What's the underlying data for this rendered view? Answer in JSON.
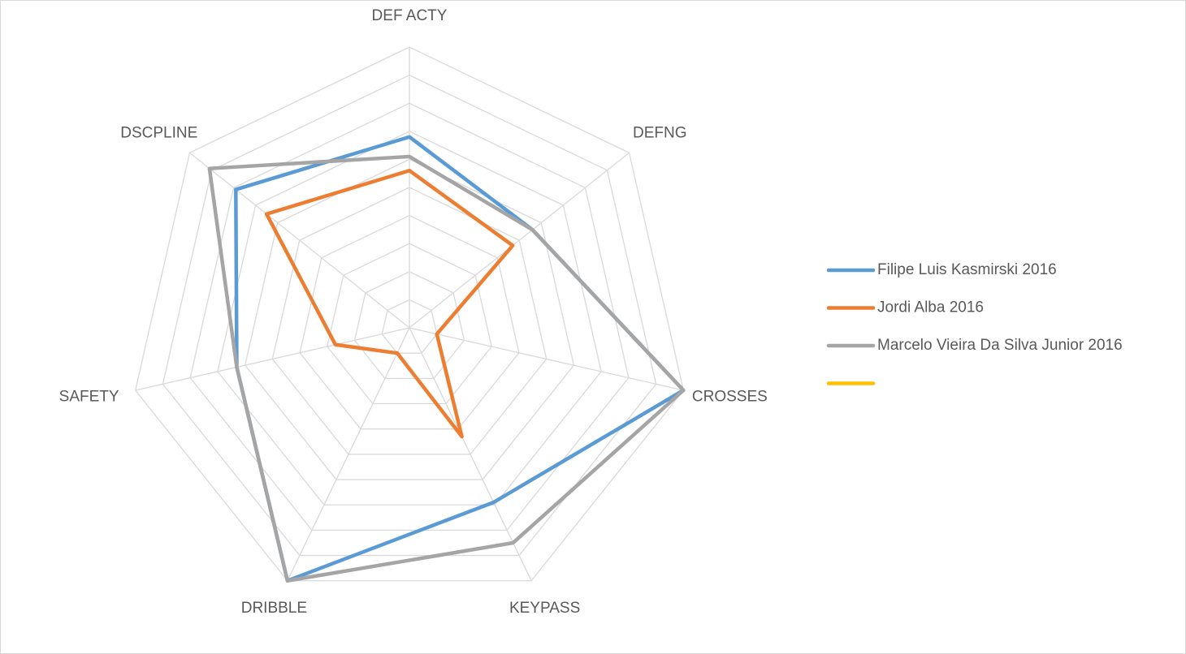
{
  "chart_data": {
    "type": "radar",
    "categories": [
      "DEF ACTY",
      "DEFNG",
      "CROSSES",
      "KEYPASS",
      "DRIBBLE",
      "SAFETY",
      "DSCPLINE"
    ],
    "series": [
      {
        "name": "Filipe Luis Kasmirski 2016",
        "color": "#5b9bd5",
        "values": [
          6.8,
          5.6,
          10,
          6.9,
          10,
          6.3,
          7.9
        ]
      },
      {
        "name": "Jordi Alba 2016",
        "color": "#ed7d31",
        "values": [
          5.6,
          4.7,
          1.0,
          4.3,
          1.0,
          2.7,
          6.5
        ]
      },
      {
        "name": "Marcelo Vieira Da Silva Junior 2016",
        "color": "#a5a5a5",
        "values": [
          6.1,
          5.6,
          10,
          8.5,
          10,
          6.3,
          9.1
        ]
      },
      {
        "name": null,
        "color": "#ffc000",
        "values": [
          null,
          null,
          null,
          null,
          null,
          null,
          null
        ]
      }
    ],
    "ylim": [
      0,
      10
    ],
    "yticks": [
      0,
      1,
      2,
      3,
      4,
      5,
      6,
      7,
      8,
      9,
      10
    ],
    "tick_labels": false,
    "grid": true,
    "legend": "right"
  }
}
